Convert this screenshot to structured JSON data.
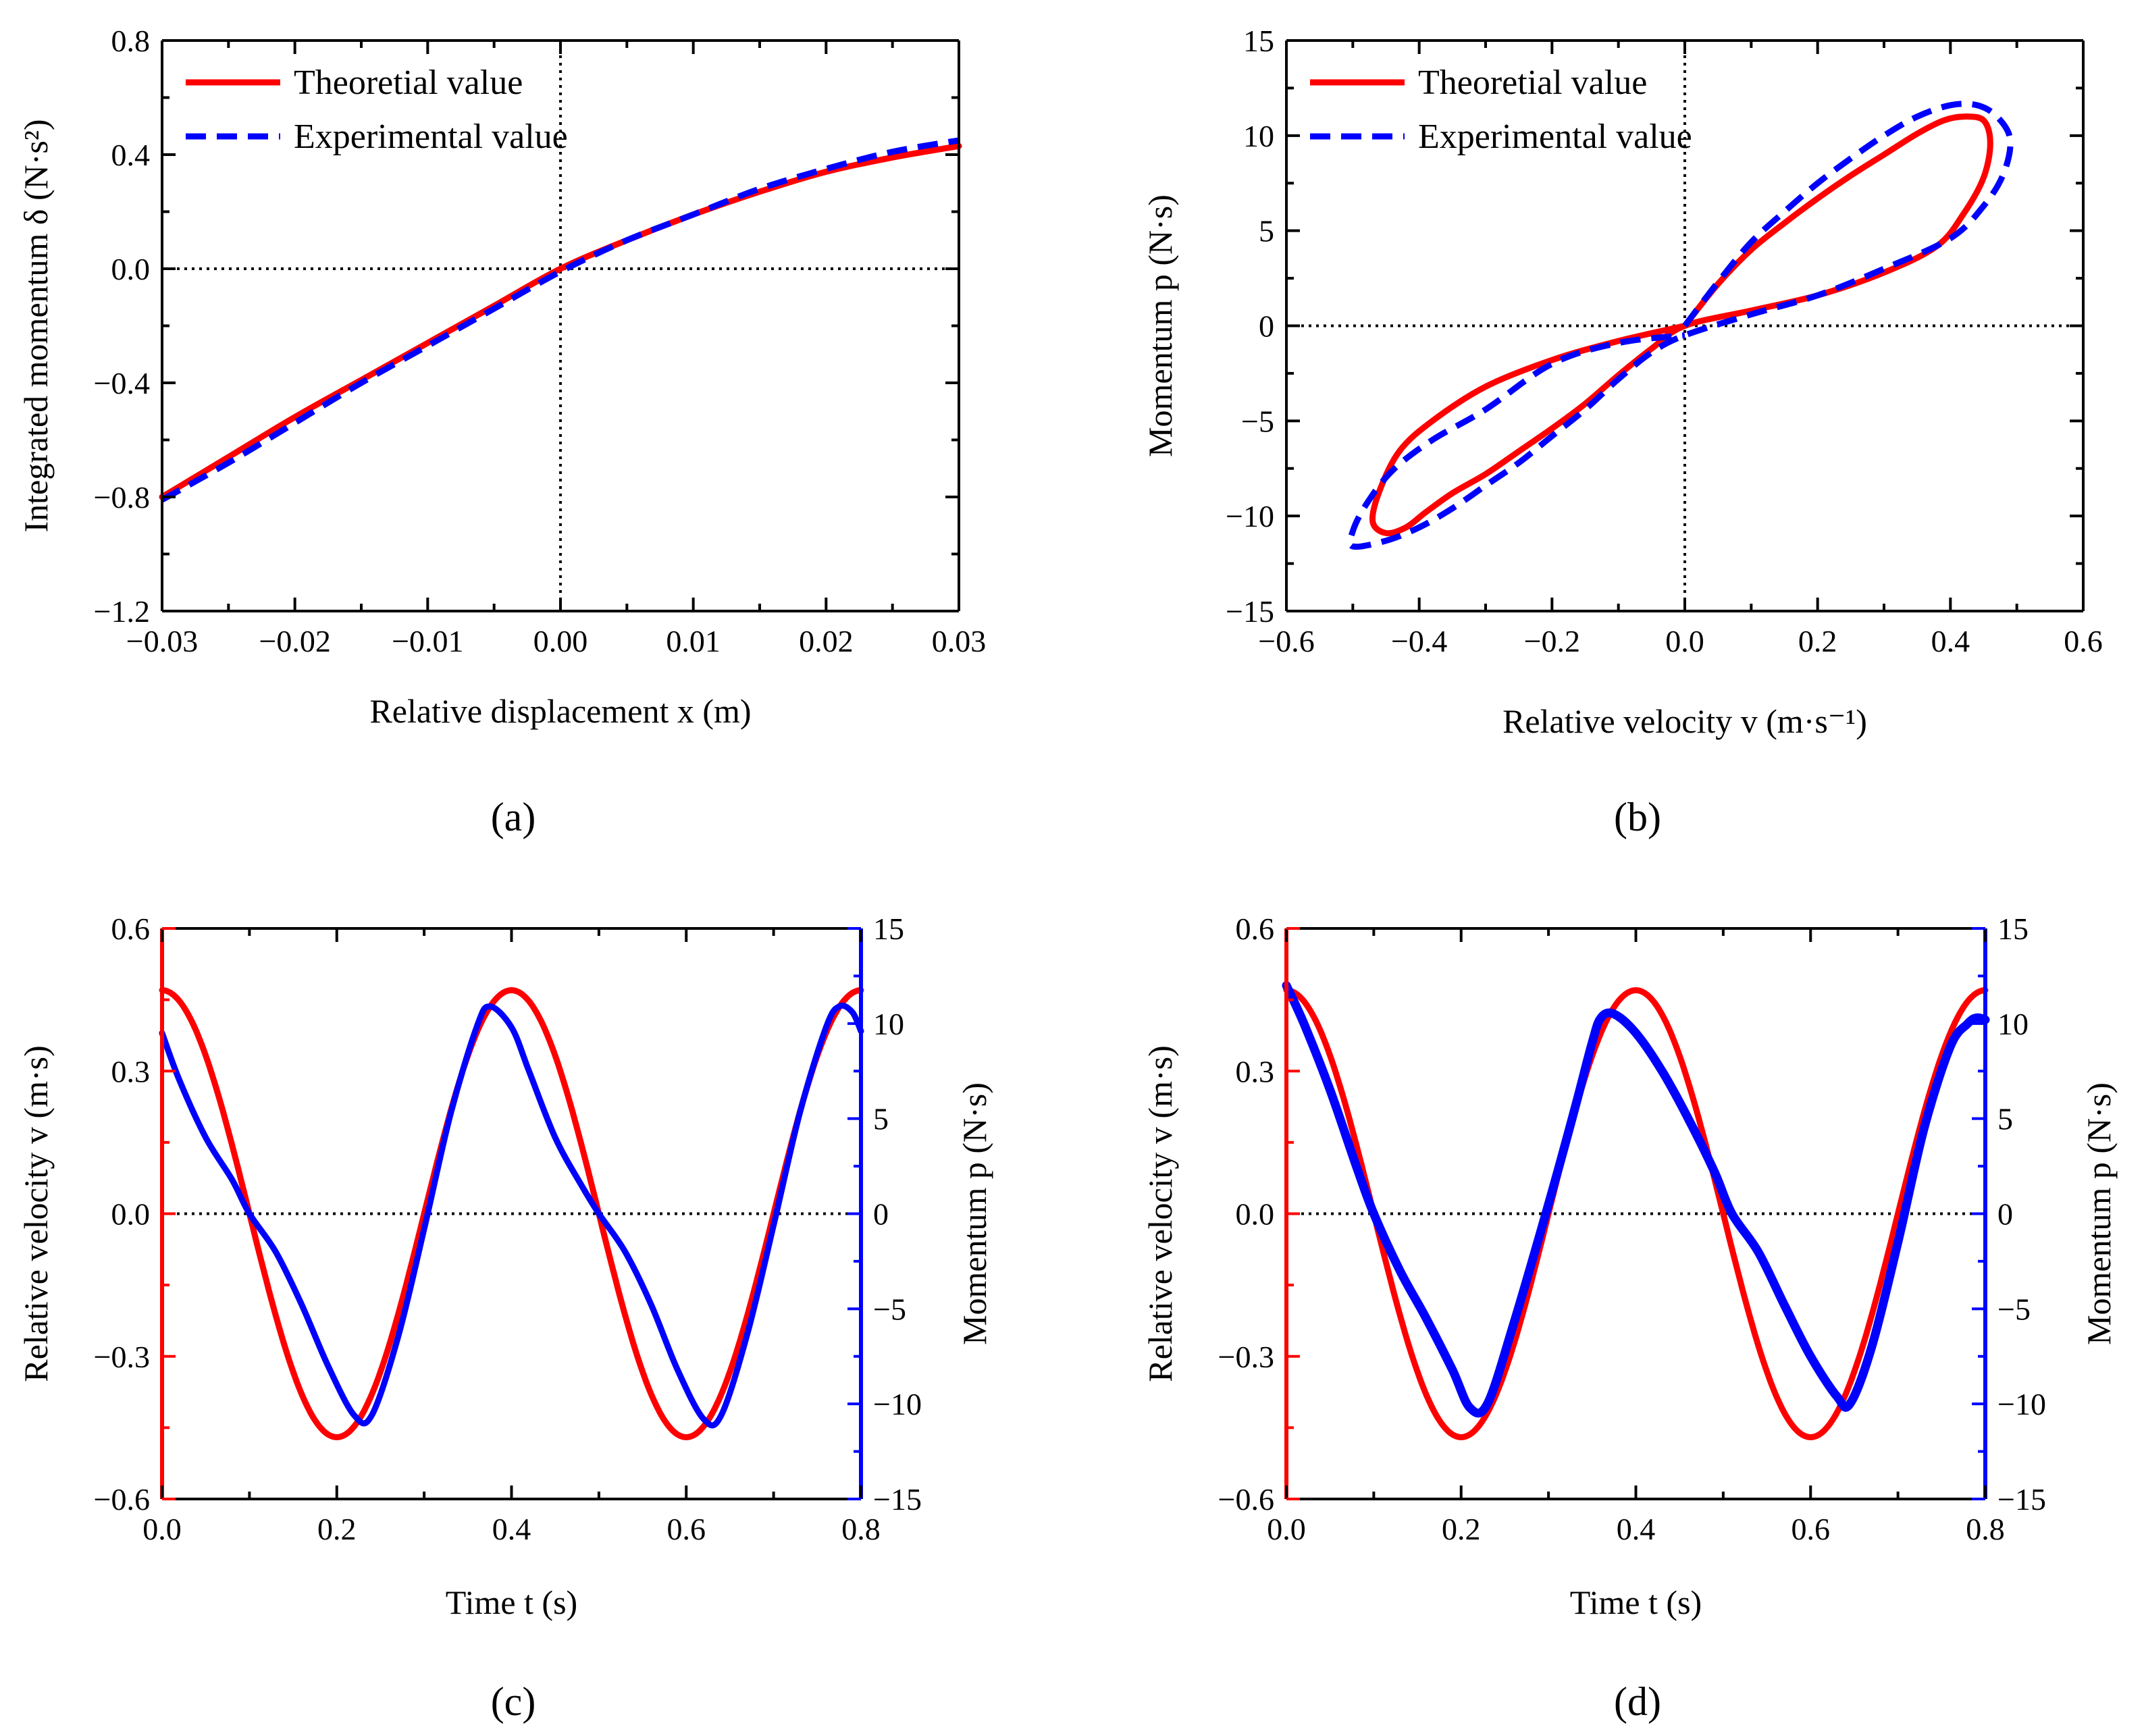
{
  "chart_data": [
    {
      "panel": "a",
      "caption": "(a)",
      "type": "line",
      "xlabel": "Relative displacement x (m)",
      "ylabel": "Integrated momentum δ (N·s²)",
      "xlim": [
        -0.03,
        0.03
      ],
      "ylim": [
        -1.2,
        0.8
      ],
      "xticks": [
        "−0.03",
        "−0.02",
        "−0.01",
        "0.00",
        "0.01",
        "0.02",
        "0.03"
      ],
      "yticks": [
        "−1.2",
        "−0.8",
        "−0.4",
        "0.0",
        "0.4",
        "0.8"
      ],
      "legend": {
        "position": "top-left"
      },
      "reference_lines": {
        "x": 0,
        "y": 0,
        "style": "dotted"
      },
      "series": [
        {
          "name": "Theoretial value",
          "color": "#ff0000",
          "style": "solid",
          "x": [
            -0.03,
            -0.025,
            -0.02,
            -0.015,
            -0.01,
            -0.005,
            0.0,
            0.005,
            0.01,
            0.015,
            0.02,
            0.025,
            0.03
          ],
          "y": [
            -0.8,
            -0.66,
            -0.52,
            -0.39,
            -0.26,
            -0.13,
            0.0,
            0.1,
            0.19,
            0.27,
            0.34,
            0.39,
            0.43
          ]
        },
        {
          "name": "Experimental value",
          "color": "#0000ff",
          "style": "dashed",
          "x": [
            -0.03,
            -0.025,
            -0.02,
            -0.015,
            -0.01,
            -0.005,
            0.0,
            0.005,
            0.01,
            0.015,
            0.02,
            0.025,
            0.03
          ],
          "y": [
            -0.81,
            -0.68,
            -0.54,
            -0.4,
            -0.27,
            -0.14,
            -0.01,
            0.1,
            0.19,
            0.28,
            0.35,
            0.41,
            0.45
          ]
        }
      ]
    },
    {
      "panel": "b",
      "caption": "(b)",
      "type": "line",
      "xlabel": "Relative velocity v (m·s⁻¹)",
      "ylabel": "Momentum p (N·s)",
      "xlim": [
        -0.6,
        0.6
      ],
      "ylim": [
        -15,
        15
      ],
      "xticks": [
        "−0.6",
        "−0.4",
        "−0.2",
        "0.0",
        "0.2",
        "0.4",
        "0.6"
      ],
      "yticks": [
        "−15",
        "−10",
        "−5",
        "0",
        "5",
        "10",
        "15"
      ],
      "legend": {
        "position": "top-left"
      },
      "reference_lines": {
        "x": 0,
        "y": 0,
        "style": "dotted"
      },
      "series": [
        {
          "name": "Theoretial value",
          "color": "#ff0000",
          "style": "solid",
          "x": [
            0.0,
            0.05,
            0.1,
            0.15,
            0.2,
            0.25,
            0.3,
            0.35,
            0.39,
            0.42,
            0.45,
            0.46,
            0.45,
            0.42,
            0.38,
            0.3,
            0.2,
            0.1,
            0.0,
            -0.05,
            -0.1,
            -0.15,
            -0.2,
            -0.25,
            -0.3,
            -0.35,
            -0.39,
            -0.42,
            -0.45,
            -0.47,
            -0.46,
            -0.43,
            -0.38,
            -0.3,
            -0.2,
            -0.1,
            0.0
          ],
          "y": [
            0.0,
            2.2,
            4.0,
            5.4,
            6.7,
            7.9,
            9.0,
            10.1,
            10.8,
            11.0,
            10.8,
            9.6,
            7.8,
            5.9,
            4.2,
            2.8,
            1.6,
            0.8,
            0.0,
            -1.2,
            -2.6,
            -4.1,
            -5.4,
            -6.6,
            -7.8,
            -8.8,
            -9.8,
            -10.6,
            -10.9,
            -10.3,
            -8.7,
            -6.6,
            -5.0,
            -3.2,
            -1.8,
            -0.8,
            0.0
          ]
        },
        {
          "name": "Experimental value",
          "color": "#0000ff",
          "style": "dashed",
          "x": [
            0.0,
            0.05,
            0.1,
            0.15,
            0.2,
            0.25,
            0.3,
            0.35,
            0.4,
            0.44,
            0.47,
            0.49,
            0.48,
            0.45,
            0.4,
            0.3,
            0.2,
            0.1,
            0.0,
            -0.05,
            -0.1,
            -0.15,
            -0.2,
            -0.25,
            -0.3,
            -0.35,
            -0.4,
            -0.45,
            -0.5,
            -0.5,
            -0.48,
            -0.44,
            -0.38,
            -0.3,
            -0.2,
            -0.1,
            0.0
          ],
          "y": [
            0.0,
            2.3,
            4.4,
            6.0,
            7.5,
            8.8,
            10.0,
            11.0,
            11.6,
            11.6,
            11.0,
            9.8,
            8.0,
            6.3,
            4.6,
            3.0,
            1.6,
            0.6,
            -0.5,
            -1.4,
            -2.8,
            -4.4,
            -5.8,
            -7.2,
            -8.4,
            -9.6,
            -10.6,
            -11.3,
            -11.6,
            -10.8,
            -9.4,
            -7.6,
            -6.0,
            -4.4,
            -2.0,
            -0.9,
            -0.5
          ]
        }
      ]
    },
    {
      "panel": "c",
      "caption": "(c)",
      "type": "line",
      "xlabel": "Time t (s)",
      "ylabel": "Relative velocity v (m·s)",
      "ylabel_right": "Momentum p (N·s)",
      "xlim": [
        0.0,
        0.8
      ],
      "ylim": [
        -0.6,
        0.6
      ],
      "ylim_right": [
        -15,
        15
      ],
      "xticks": [
        "0.0",
        "0.2",
        "0.4",
        "0.6",
        "0.8"
      ],
      "yticks": [
        "−0.6",
        "−0.3",
        "0.0",
        "0.3",
        "0.6"
      ],
      "yticks_right": [
        "−15",
        "−10",
        "−5",
        "0",
        "5",
        "10",
        "15"
      ],
      "left_axis_color": "#ff0000",
      "right_axis_color": "#0000ff",
      "reference_lines": {
        "y": 0,
        "style": "dotted"
      },
      "series": [
        {
          "axis": "left",
          "color": "#ff0000",
          "style": "solid",
          "function": "0.47*cos(2*pi*t/0.4)",
          "t_range": [
            0.0,
            0.8
          ],
          "amplitude": 0.47,
          "period": 0.4
        },
        {
          "axis": "right",
          "color": "#0000ff",
          "style": "solid",
          "x": [
            0.0,
            0.02,
            0.05,
            0.08,
            0.1,
            0.13,
            0.16,
            0.19,
            0.22,
            0.24,
            0.27,
            0.3,
            0.33,
            0.36,
            0.375,
            0.4,
            0.42,
            0.45,
            0.48,
            0.5,
            0.53,
            0.56,
            0.59,
            0.62,
            0.64,
            0.67,
            0.7,
            0.73,
            0.76,
            0.775,
            0.79,
            0.8
          ],
          "y": [
            9.5,
            7.0,
            4.0,
            1.8,
            0.0,
            -2.0,
            -4.8,
            -8.0,
            -10.6,
            -10.6,
            -6.5,
            -0.8,
            5.2,
            9.8,
            10.9,
            9.8,
            7.5,
            4.0,
            1.5,
            0.0,
            -2.0,
            -4.8,
            -8.2,
            -10.8,
            -10.6,
            -6.3,
            -0.6,
            5.3,
            9.8,
            10.9,
            10.6,
            9.6
          ]
        }
      ]
    },
    {
      "panel": "d",
      "caption": "(d)",
      "type": "line",
      "xlabel": "Time t (s)",
      "ylabel": "Relative velocity v (m·s)",
      "ylabel_right": "Momentum p (N·s)",
      "xlim": [
        0.0,
        0.8
      ],
      "ylim": [
        -0.6,
        0.6
      ],
      "ylim_right": [
        -15,
        15
      ],
      "xticks": [
        "0.0",
        "0.2",
        "0.4",
        "0.6",
        "0.8"
      ],
      "yticks": [
        "−0.6",
        "−0.3",
        "0.0",
        "0.3",
        "0.6"
      ],
      "yticks_right": [
        "−15",
        "−10",
        "−5",
        "0",
        "5",
        "10",
        "15"
      ],
      "left_axis_color": "#ff0000",
      "right_axis_color": "#0000ff",
      "reference_lines": {
        "y": 0,
        "style": "dotted"
      },
      "series": [
        {
          "axis": "left",
          "color": "#ff0000",
          "style": "solid",
          "function": "0.47*cos(2*pi*t/0.4)",
          "t_range": [
            0.0,
            0.8
          ],
          "amplitude": 0.47,
          "period": 0.4
        },
        {
          "axis": "right",
          "color": "#0000ff",
          "style": "solid",
          "x": [
            0.0,
            0.02,
            0.05,
            0.08,
            0.1,
            0.13,
            0.16,
            0.19,
            0.21,
            0.23,
            0.26,
            0.3,
            0.33,
            0.35,
            0.36,
            0.375,
            0.4,
            0.43,
            0.46,
            0.49,
            0.51,
            0.54,
            0.57,
            0.6,
            0.63,
            0.645,
            0.67,
            0.7,
            0.73,
            0.76,
            0.78,
            0.79,
            0.8
          ],
          "y": [
            12.0,
            10.0,
            6.5,
            2.5,
            0.0,
            -3.0,
            -5.5,
            -8.2,
            -10.2,
            -10.0,
            -5.8,
            0.5,
            5.5,
            9.0,
            10.3,
            10.5,
            9.5,
            7.5,
            5.0,
            2.2,
            0.0,
            -2.0,
            -4.8,
            -7.5,
            -9.6,
            -10.0,
            -7.0,
            -1.5,
            4.5,
            8.8,
            10.0,
            10.3,
            10.2
          ]
        }
      ]
    }
  ]
}
